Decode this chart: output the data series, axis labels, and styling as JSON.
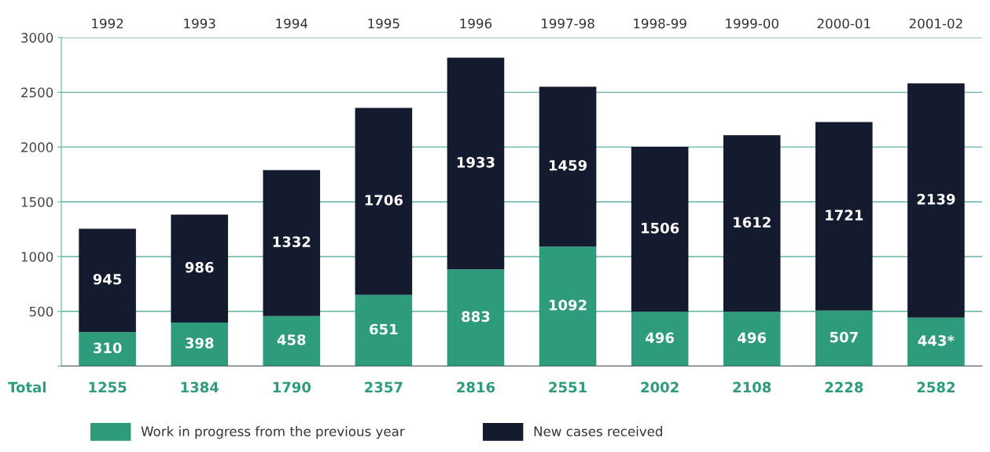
{
  "chart_data": {
    "type": "bar",
    "stacked": true,
    "categories": [
      "1992",
      "1993",
      "1994",
      "1995",
      "1996",
      "1997-98",
      "1998-99",
      "1999-00",
      "2000-01",
      "2001-02"
    ],
    "series": [
      {
        "name": "Work in progress from the previous year",
        "color": "#2e9c7c",
        "values": [
          310,
          398,
          458,
          651,
          883,
          1092,
          496,
          496,
          507,
          443
        ],
        "value_labels": [
          "310",
          "398",
          "458",
          "651",
          "883",
          "1092",
          "496",
          "496",
          "507",
          "443*"
        ]
      },
      {
        "name": "New cases received",
        "color": "#141b2e",
        "values": [
          945,
          986,
          1332,
          1706,
          1933,
          1459,
          1506,
          1612,
          1721,
          2139
        ],
        "value_labels": [
          "945",
          "986",
          "1332",
          "1706",
          "1933",
          "1459",
          "1506",
          "1612",
          "1721",
          "2139"
        ]
      }
    ],
    "totals": [
      "1255",
      "1384",
      "1790",
      "2357",
      "2816",
      "2551",
      "2002",
      "2108",
      "2228",
      "2582"
    ],
    "annotations": [
      "Total"
    ],
    "ylim": [
      0,
      3000
    ],
    "yticks": [
      {
        "value": 0,
        "label": null
      },
      500,
      1000,
      1500,
      2000,
      2500,
      3000
    ],
    "grid": "y",
    "legend": "bottom"
  }
}
